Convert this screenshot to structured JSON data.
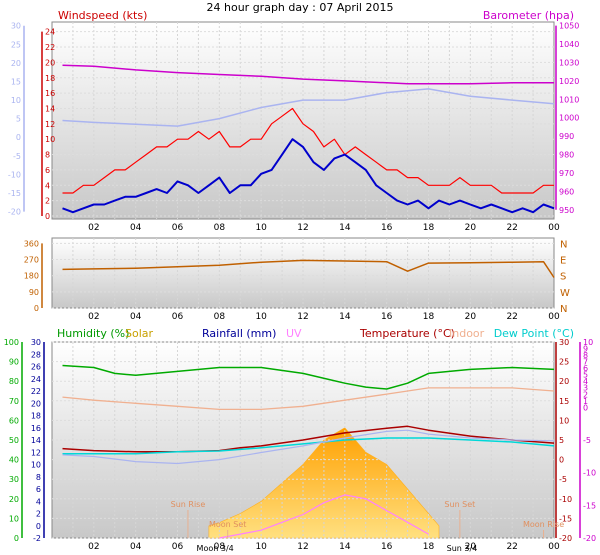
{
  "title": "24 hour graph day : 07 April 2015",
  "x_ticks": [
    "02",
    "04",
    "06",
    "08",
    "10",
    "12",
    "14",
    "16",
    "18",
    "20",
    "22",
    "00"
  ],
  "colors": {
    "wind": "#ff0000",
    "wind_avg": "#0000cc",
    "baro": "#cc00cc",
    "temp_light": "#aab4f0",
    "direction": "#c06000",
    "humidity": "#00aa00",
    "solar": "#ffb020",
    "rain": "#000099",
    "uv": "#ff80ff",
    "temperature": "#aa0000",
    "indoor": "#f0b090",
    "dewpoint": "#00d8d8",
    "sun": "#e09060"
  },
  "chart_data": [
    {
      "type": "line",
      "name": "wind",
      "title_left": "Windspeed (kts)",
      "title_right": "Barometer (hpa)",
      "x_range": [
        0,
        24
      ],
      "y_left": {
        "range": [
          0,
          25
        ],
        "ticks": [
          "0",
          "2",
          "4",
          "6",
          "8",
          "10",
          "12",
          "14",
          "16",
          "18",
          "20",
          "22",
          "24"
        ]
      },
      "y_right": {
        "range": [
          945,
          1052
        ],
        "ticks": [
          "950",
          "960",
          "970",
          "980",
          "990",
          "1000",
          "1010",
          "1020",
          "1030",
          "1040",
          "1050"
        ]
      },
      "y_outer": {
        "range": [
          -22,
          31
        ],
        "ticks": [
          "-20",
          "-15",
          "-10",
          "-5",
          "0",
          "5",
          "10",
          "15",
          "20",
          "25",
          "30"
        ]
      },
      "series": [
        {
          "key": "gust",
          "x": [
            0.5,
            1,
            1.5,
            2,
            2.5,
            3,
            3.5,
            4,
            4.5,
            5,
            5.5,
            6,
            6.5,
            7,
            7.5,
            8,
            8.5,
            9,
            9.5,
            10,
            10.5,
            11,
            11.5,
            12,
            12.5,
            13,
            13.5,
            14,
            14.5,
            15,
            15.5,
            16,
            16.5,
            17,
            17.5,
            18,
            18.5,
            19,
            19.5,
            20,
            20.5,
            21,
            21.5,
            22,
            22.5,
            23,
            23.5,
            24
          ],
          "y": [
            3,
            3,
            4,
            4,
            5,
            6,
            6,
            7,
            8,
            9,
            9,
            10,
            10,
            11,
            10,
            11,
            9,
            9,
            10,
            10,
            12,
            13,
            14,
            12,
            11,
            9,
            10,
            8,
            9,
            8,
            7,
            6,
            6,
            5,
            5,
            4,
            4,
            4,
            5,
            4,
            4,
            4,
            3,
            3,
            3,
            3,
            4,
            4
          ]
        },
        {
          "key": "average",
          "x": [
            0.5,
            1,
            1.5,
            2,
            2.5,
            3,
            3.5,
            4,
            4.5,
            5,
            5.5,
            6,
            6.5,
            7,
            7.5,
            8,
            8.5,
            9,
            9.5,
            10,
            10.5,
            11,
            11.5,
            12,
            12.5,
            13,
            13.5,
            14,
            14.5,
            15,
            15.5,
            16,
            16.5,
            17,
            17.5,
            18,
            18.5,
            19,
            19.5,
            20,
            20.5,
            21,
            21.5,
            22,
            22.5,
            23,
            23.5,
            24
          ],
          "y": [
            1,
            0.5,
            1,
            1.5,
            1.5,
            2,
            2.5,
            2.5,
            3,
            3.5,
            3,
            4.5,
            4,
            3,
            4,
            5,
            3,
            4,
            4,
            5.5,
            6,
            8,
            10,
            9,
            7,
            6,
            7.5,
            8,
            7,
            6,
            4,
            3,
            2,
            1.5,
            2,
            1,
            2,
            1.5,
            2,
            1.5,
            1,
            1.5,
            1,
            0.5,
            1,
            0.5,
            1.5,
            1
          ]
        },
        {
          "key": "barometer",
          "x": [
            0.5,
            2,
            4,
            6,
            8,
            10,
            12,
            14,
            16,
            17,
            18,
            20,
            22,
            24
          ],
          "y": [
            1028.5,
            1028,
            1026,
            1024.5,
            1023.5,
            1022.5,
            1021,
            1020,
            1019,
            1018.5,
            1018.5,
            1018.5,
            1019,
            1019
          ]
        },
        {
          "key": "temperature",
          "x": [
            0.5,
            2,
            4,
            6,
            8,
            10,
            12,
            14,
            16,
            18,
            20,
            22,
            24
          ],
          "y": [
            4.5,
            4,
            3.5,
            3,
            5,
            8,
            10,
            10,
            12,
            13,
            11,
            10,
            9
          ]
        }
      ]
    },
    {
      "type": "line",
      "name": "direction",
      "y_left": {
        "range": [
          0,
          390
        ],
        "ticks": [
          "0",
          "90",
          "180",
          "270",
          "360"
        ]
      },
      "y_right_labels": [
        "N",
        "W",
        "S",
        "E",
        "N"
      ],
      "series": [
        {
          "key": "wind_direction",
          "x": [
            0.5,
            2,
            4,
            6,
            8,
            10,
            12,
            14,
            16,
            17,
            18,
            20,
            22,
            23.5,
            24
          ],
          "y": [
            215,
            218,
            222,
            230,
            238,
            255,
            265,
            262,
            258,
            205,
            250,
            252,
            255,
            258,
            170
          ]
        }
      ]
    },
    {
      "type": "line",
      "name": "weather",
      "headings": [
        "Humidity (%)",
        "Solar",
        "Rainfall (mm)",
        "UV",
        "Temperature (°C)",
        "Indoor",
        "Dew Point (°C)"
      ],
      "y_hum": {
        "range": [
          0,
          100
        ],
        "ticks": [
          "0",
          "10",
          "20",
          "30",
          "40",
          "50",
          "60",
          "70",
          "80",
          "90",
          "100"
        ]
      },
      "y_rain": {
        "range": [
          -2,
          30
        ],
        "ticks": [
          "-2",
          "0",
          "2",
          "4",
          "6",
          "8",
          "10",
          "12",
          "14",
          "16",
          "18",
          "20",
          "22",
          "24",
          "26",
          "28",
          "30"
        ]
      },
      "y_temp": {
        "range": [
          -20,
          30
        ],
        "ticks": [
          "-20",
          "-15",
          "-10",
          "-5",
          "0",
          "5",
          "10",
          "15",
          "20",
          "25",
          "30"
        ]
      },
      "y_uv": {
        "range": [
          -20,
          10
        ],
        "ticks": [
          "-20",
          "-15",
          "-10",
          "-5",
          "0",
          "1",
          "2",
          "3",
          "4",
          "5",
          "6",
          "7",
          "8",
          "9",
          "10"
        ]
      },
      "series": [
        {
          "key": "humidity",
          "x": [
            0.5,
            2,
            3,
            4,
            6,
            8,
            10,
            12,
            14,
            15,
            16,
            17,
            18,
            20,
            22,
            24
          ],
          "y": [
            88,
            87,
            84,
            83,
            85,
            87,
            87,
            84,
            79,
            77,
            76,
            79,
            84,
            86,
            87,
            86
          ]
        },
        {
          "key": "indoor",
          "x": [
            0.5,
            2,
            4,
            6,
            8,
            10,
            12,
            14,
            16,
            18,
            20,
            22,
            24
          ],
          "y": [
            21,
            20.5,
            20,
            19.5,
            19,
            19,
            19.5,
            20.5,
            21.5,
            22.5,
            22.5,
            22.5,
            22
          ]
        },
        {
          "key": "temperature",
          "x": [
            0.5,
            2,
            4,
            6,
            8,
            9,
            10,
            12,
            14,
            16,
            17,
            18,
            20,
            22,
            24
          ],
          "y": [
            2.8,
            2.3,
            2,
            2,
            2.3,
            3,
            3.5,
            5,
            6.8,
            8,
            8.5,
            7.5,
            6,
            5,
            4.2
          ]
        },
        {
          "key": "dewpoint",
          "x": [
            0.5,
            2,
            4,
            6,
            8,
            10,
            12,
            14,
            16,
            18,
            20,
            22,
            24
          ],
          "y": [
            1.5,
            1.5,
            1.5,
            2,
            2.2,
            3,
            4,
            5,
            5.5,
            5.5,
            5,
            4.5,
            3.5
          ]
        },
        {
          "key": "temperature_light",
          "x": [
            0.5,
            2,
            4,
            6,
            8,
            10,
            12,
            14,
            16,
            17,
            18,
            20,
            22,
            24
          ],
          "y": [
            1.2,
            0.8,
            -0.5,
            -1,
            0,
            1.8,
            3.5,
            5.5,
            7.2,
            7.5,
            6.5,
            5.5,
            5,
            4.8
          ]
        },
        {
          "key": "solar",
          "x": [
            7.5,
            8,
            9,
            10,
            11,
            12,
            13,
            14,
            15,
            16,
            17,
            18,
            18.5
          ],
          "y": [
            0,
            0.5,
            2,
            4,
            7,
            10,
            14,
            16,
            12,
            10,
            6,
            2,
            0
          ]
        },
        {
          "key": "uv",
          "x": [
            8,
            9,
            10,
            11,
            12,
            13,
            14,
            15,
            16,
            17,
            18
          ],
          "y": [
            -20,
            -19,
            -18,
            -16,
            -14,
            -11,
            -9,
            -10,
            -13,
            -16,
            -19
          ]
        }
      ],
      "annotations": [
        {
          "label": "Sun Rise",
          "x": 6.5,
          "row": "top"
        },
        {
          "label": "Sun Set",
          "x": 19.5,
          "row": "top"
        },
        {
          "label": "Moon Set",
          "x": 8.4,
          "row": "mid"
        },
        {
          "label": "Moon Rise",
          "x": 23.5,
          "row": "mid"
        },
        {
          "label": "Moon 3/4",
          "x": 7.8,
          "row": "axis"
        },
        {
          "label": "Sun 3/4",
          "x": 19.6,
          "row": "axis"
        }
      ]
    }
  ]
}
